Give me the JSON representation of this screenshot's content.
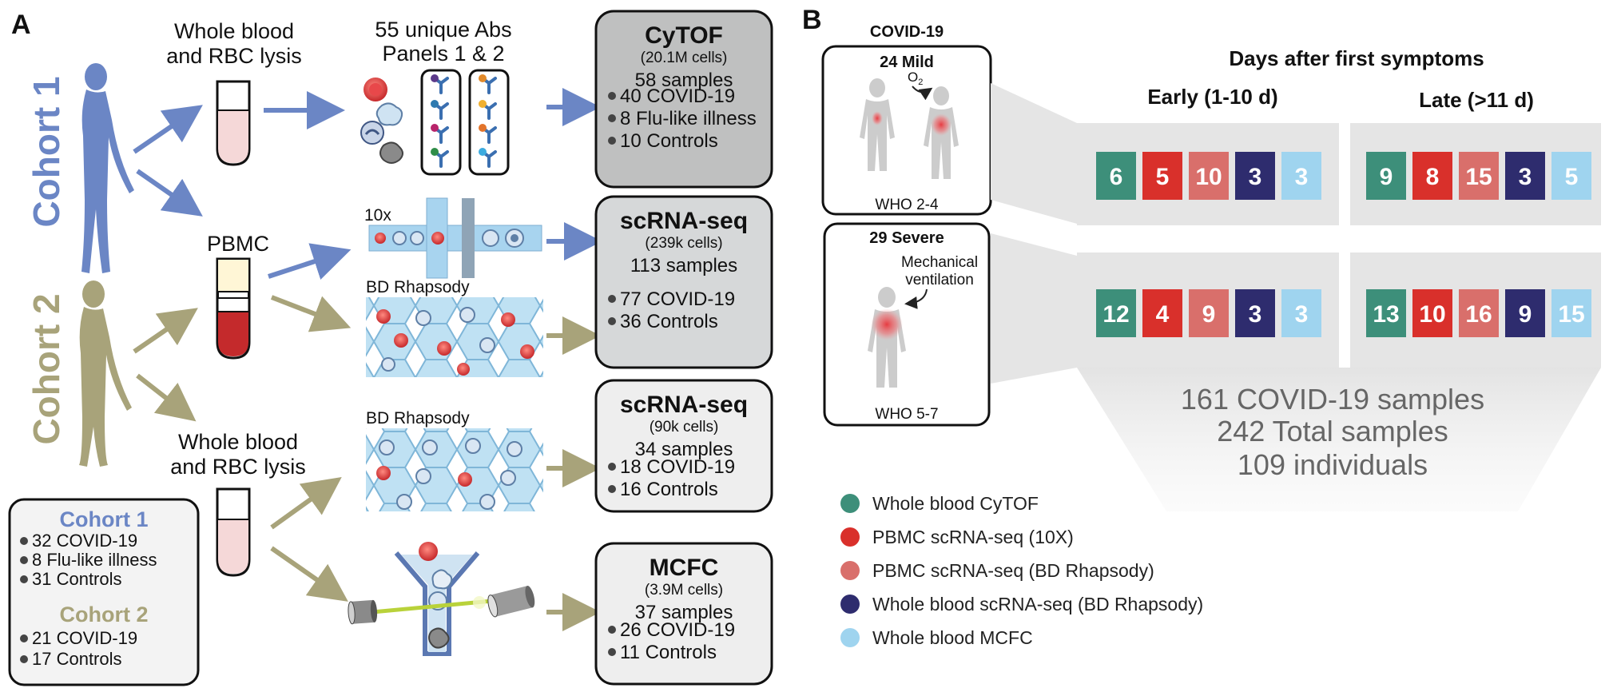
{
  "panel_a": {
    "label": "A",
    "cohort1_vertical": "Cohort 1",
    "cohort2_vertical": "Cohort 2",
    "wb_rbc_top_line1": "Whole blood",
    "wb_rbc_top_line2": "and RBC lysis",
    "pbmc_label": "PBMC",
    "wb_rbc_bottom_line1": "Whole blood",
    "wb_rbc_bottom_line2": "and RBC lysis",
    "abs_line1": "55 unique Abs",
    "abs_line2": "Panels 1 & 2",
    "tenx_label": "10x",
    "bd_rhapsody_1": "BD Rhapsody",
    "bd_rhapsody_2": "BD Rhapsody",
    "cohort_box": {
      "cohort1_title": "Cohort 1",
      "cohort1_items": [
        "32 COVID-19",
        "8 Flu-like illness",
        "31 Controls"
      ],
      "cohort2_title": "Cohort 2",
      "cohort2_items": [
        "21 COVID-19",
        "17 Controls"
      ]
    },
    "boxes": [
      {
        "title": "CyTOF",
        "cells": "(20.1M cells)",
        "samples": "58 samples",
        "items": [
          "40 COVID-19",
          "8 Flu-like illness",
          "10 Controls"
        ]
      },
      {
        "title": "scRNA-seq",
        "cells": "(239k cells)",
        "samples": "113 samples",
        "items": [
          "77 COVID-19",
          "36 Controls"
        ]
      },
      {
        "title": "scRNA-seq",
        "cells": "(90k cells)",
        "samples": "34 samples",
        "items": [
          "18 COVID-19",
          "16 Controls"
        ]
      },
      {
        "title": "MCFC",
        "cells": "(3.9M cells)",
        "samples": "37 samples",
        "items": [
          "26 COVID-19",
          "11 Controls"
        ]
      }
    ]
  },
  "panel_b": {
    "label": "B",
    "covid_title": "COVID-19",
    "mild_title": "24 Mild",
    "o2_label": "O",
    "o2_sub": "2",
    "mild_who": "WHO 2-4",
    "severe_title": "29 Severe",
    "mech_line1": "Mechanical",
    "mech_line2": "ventilation",
    "severe_who": "WHO 5-7",
    "days_title": "Days after first symptoms",
    "early_label": "Early (1-10 d)",
    "late_label": "Late (>11 d)",
    "early_mild": [
      "6",
      "5",
      "10",
      "3",
      "3"
    ],
    "late_mild": [
      "9",
      "8",
      "15",
      "3",
      "5"
    ],
    "early_severe": [
      "12",
      "4",
      "9",
      "3",
      "3"
    ],
    "late_severe": [
      "13",
      "10",
      "16",
      "9",
      "15"
    ],
    "summary": [
      "161 COVID-19 samples",
      "242 Total samples",
      "109 individuals"
    ],
    "legend": [
      {
        "label": "Whole blood CyTOF",
        "color": "#3d8f7a"
      },
      {
        "label": "PBMC scRNA-seq (10X)",
        "color": "#d9302b"
      },
      {
        "label": "PBMC scRNA-seq (BD Rhapsody)",
        "color": "#d96f6b"
      },
      {
        "label": "Whole blood scRNA-seq (BD Rhapsody)",
        "color": "#2e2c6e"
      },
      {
        "label": "Whole blood MCFC",
        "color": "#9fd4ef"
      }
    ],
    "colors": {
      "cytof": "#3d8f7a",
      "pbmc10x": "#d9302b",
      "pbmcbd": "#d96f6b",
      "wbbd": "#2e2c6e",
      "mcfc": "#9fd4ef"
    }
  },
  "colors": {
    "cohort1": "#6b86c5",
    "cohort2": "#a8a37a",
    "cytof_box": "#bfc0c0",
    "scrna1_box": "#d6d8d9",
    "light_box": "#eeeeee"
  }
}
